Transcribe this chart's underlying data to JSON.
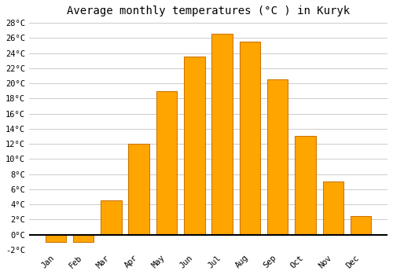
{
  "months": [
    "Jan",
    "Feb",
    "Mar",
    "Apr",
    "May",
    "Jun",
    "Jul",
    "Aug",
    "Sep",
    "Oct",
    "Nov",
    "Dec"
  ],
  "temperatures": [
    -1.0,
    -1.0,
    4.5,
    12.0,
    19.0,
    23.5,
    26.5,
    25.5,
    20.5,
    13.0,
    7.0,
    2.5
  ],
  "bar_color": "#FFA500",
  "bar_edge_color": "#CC7700",
  "title": "Average monthly temperatures (°C ) in Kuryk",
  "ylim": [
    -2,
    28
  ],
  "yticks": [
    -2,
    0,
    2,
    4,
    6,
    8,
    10,
    12,
    14,
    16,
    18,
    20,
    22,
    24,
    26,
    28
  ],
  "ytick_labels": [
    "-2°C",
    "0°C",
    "2°C",
    "4°C",
    "6°C",
    "8°C",
    "10°C",
    "12°C",
    "14°C",
    "16°C",
    "18°C",
    "20°C",
    "22°C",
    "24°C",
    "26°C",
    "28°C"
  ],
  "background_color": "#FFFFFF",
  "grid_color": "#CCCCCC",
  "title_fontsize": 10,
  "tick_fontsize": 7.5,
  "zero_line_color": "#000000",
  "bar_width": 0.75
}
